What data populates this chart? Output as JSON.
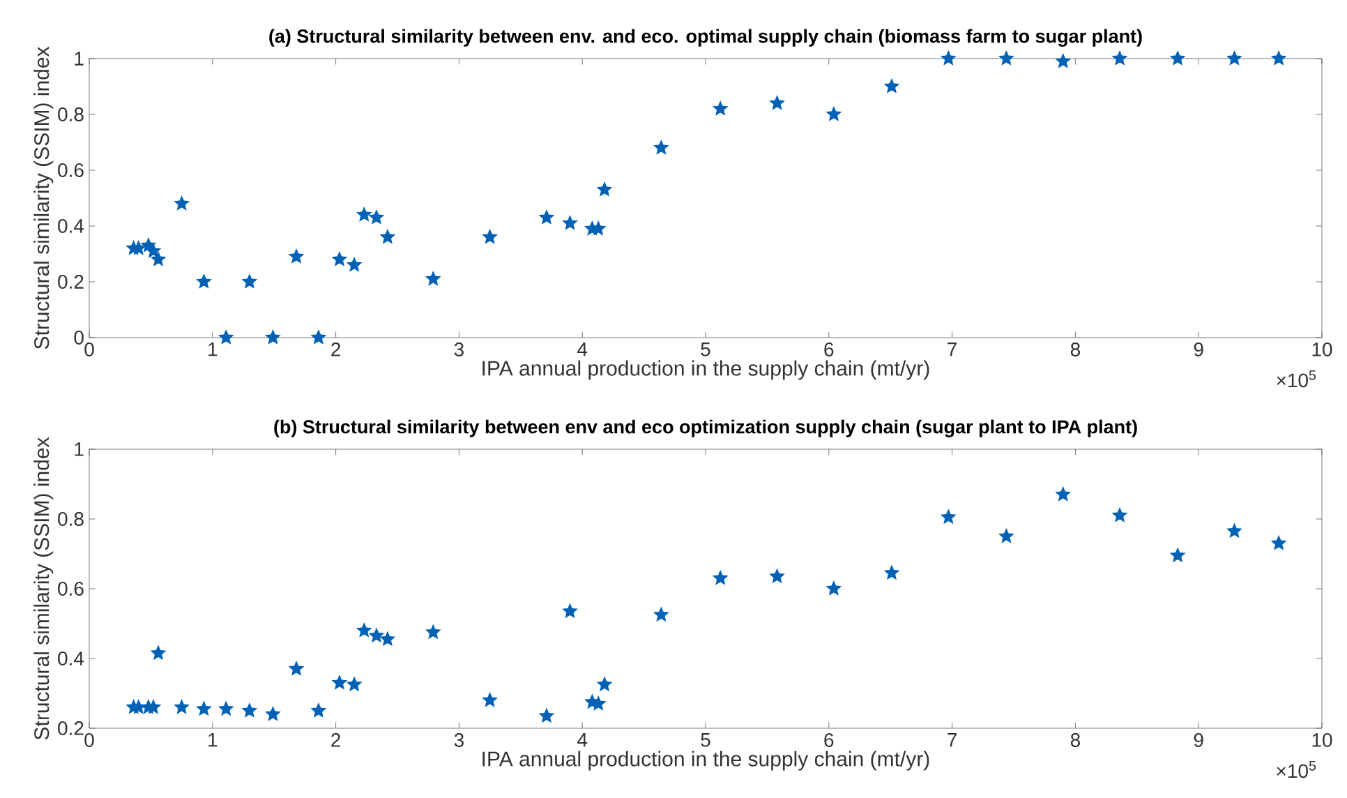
{
  "chart_data": [
    {
      "type": "scatter",
      "title": "(a)   Structural similarity between env. and eco. optimal supply chain   (biomass farm to sugar plant)",
      "xlabel": "IPA annual production in the supply chain   (mt/yr)",
      "ylabel": "Structural similarity (SSIM) index",
      "color": "#0061b5",
      "marker": "star",
      "x": [
        0.36,
        0.4,
        0.48,
        0.52,
        0.56,
        0.75,
        0.93,
        1.11,
        1.3,
        1.49,
        1.68,
        1.86,
        2.03,
        2.15,
        2.23,
        2.33,
        2.42,
        2.79,
        3.25,
        3.71,
        3.9,
        4.08,
        4.13,
        4.18,
        4.64,
        5.12,
        5.58,
        6.04,
        6.51,
        6.97,
        7.44,
        7.9,
        8.36,
        8.83,
        9.29,
        9.65
      ],
      "values": [
        0.32,
        0.32,
        0.33,
        0.31,
        0.28,
        0.48,
        0.2,
        0,
        0.2,
        0,
        0.29,
        0,
        0.28,
        0.26,
        0.44,
        0.43,
        0.36,
        0.21,
        0.36,
        0.43,
        0.41,
        0.39,
        0.39,
        0.53,
        0.68,
        0.82,
        0.84,
        0.8,
        0.9,
        1,
        1,
        0.99,
        1,
        1,
        1,
        1
      ],
      "xlim": [
        0,
        10
      ],
      "xticks": [
        0,
        1,
        2,
        3,
        4,
        5,
        6,
        7,
        8,
        9,
        10
      ],
      "ylim": [
        0,
        1
      ],
      "yticks": [
        0,
        0.2,
        0.4,
        0.6,
        0.8,
        1
      ],
      "annotations": [
        "×10$^{5}$"
      ]
    },
    {
      "type": "scatter",
      "title": "(b)   Structural similarity between env and eco optimization supply chain (sugar plant to IPA plant)",
      "xlabel": "IPA annual production in the supply chain   (mt/yr)",
      "ylabel": "Structural similarity (SSIM) index",
      "color": "#0061b5",
      "marker": "star",
      "x": [
        0.36,
        0.4,
        0.48,
        0.52,
        0.56,
        0.75,
        0.93,
        1.11,
        1.3,
        1.49,
        1.68,
        1.86,
        2.03,
        2.15,
        2.23,
        2.33,
        2.42,
        2.79,
        3.25,
        3.71,
        3.9,
        4.08,
        4.13,
        4.18,
        4.64,
        5.12,
        5.58,
        6.04,
        6.51,
        6.97,
        7.44,
        7.9,
        8.36,
        8.83,
        9.29,
        9.65
      ],
      "values": [
        0.26,
        0.26,
        0.26,
        0.26,
        0.415,
        0.26,
        0.255,
        0.255,
        0.25,
        0.24,
        0.37,
        0.25,
        0.33,
        0.325,
        0.48,
        0.465,
        0.455,
        0.475,
        0.28,
        0.235,
        0.535,
        0.275,
        0.27,
        0.325,
        0.525,
        0.63,
        0.635,
        0.6,
        0.645,
        0.805,
        0.75,
        0.87,
        0.81,
        0.695,
        0.765,
        0.73
      ],
      "xlim": [
        0,
        10
      ],
      "xticks": [
        0,
        1,
        2,
        3,
        4,
        5,
        6,
        7,
        8,
        9,
        10
      ],
      "ylim": [
        0.2,
        1
      ],
      "yticks": [
        0.2,
        0.4,
        0.6,
        0.8,
        1
      ],
      "annotations": [
        "×10$^{5}$"
      ]
    }
  ]
}
